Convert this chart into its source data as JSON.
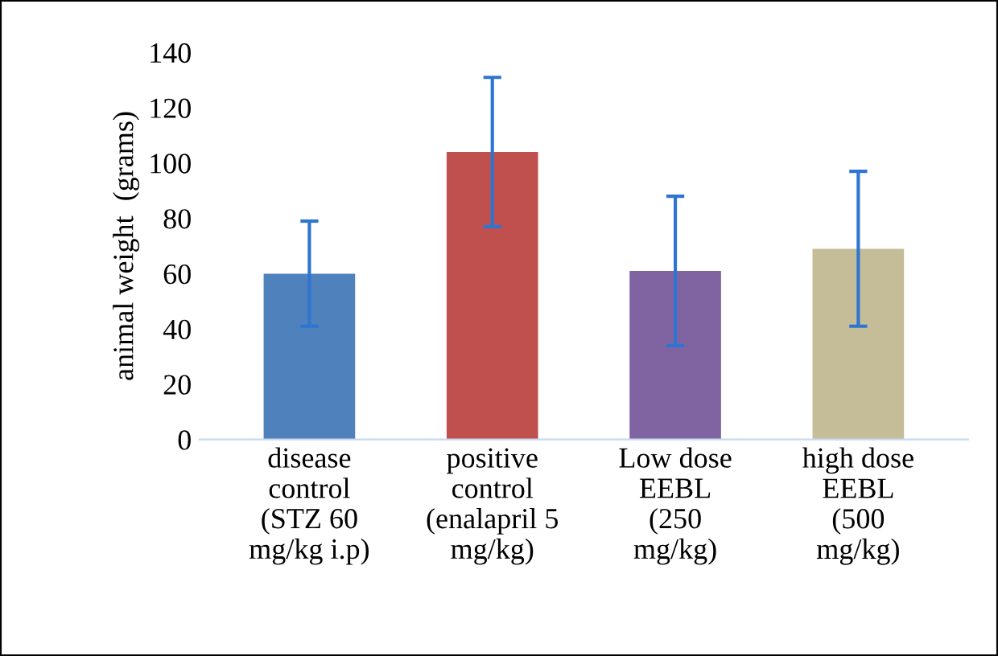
{
  "chart_data": {
    "type": "bar",
    "ylabel": "animal weight  (grams)",
    "categories": [
      "disease\ncontrol\n(STZ 60\nmg/kg i.p)",
      "positive\ncontrol\n(enalapril 5\nmg/kg)",
      "Low dose\nEEBL\n(250\nmg/kg)",
      "high dose\nEEBL\n(500\nmg/kg)"
    ],
    "values": [
      60,
      104,
      61,
      69
    ],
    "colors": [
      "#4f81bd",
      "#c0504d",
      "#8064a2",
      "#c4bd97"
    ],
    "errors": [
      19,
      27,
      27,
      28
    ],
    "ylim": [
      0,
      140
    ],
    "yticks": [
      0,
      20,
      40,
      60,
      80,
      100,
      120,
      140
    ],
    "grid": false,
    "legend": false
  }
}
